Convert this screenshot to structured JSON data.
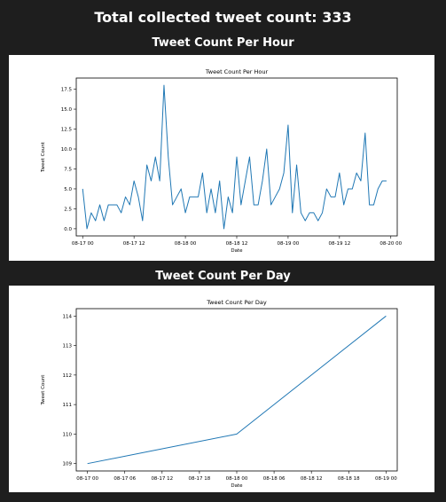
{
  "header": {
    "title": "Total collected tweet count: 333"
  },
  "sections": [
    {
      "heading": "Tweet Count Per Hour"
    },
    {
      "heading": "Tweet Count Per Day"
    }
  ],
  "colors": {
    "background": "#1e1e1e",
    "line": "#1f77b4",
    "panel": "#ffffff"
  },
  "chart_data": [
    {
      "type": "line",
      "title": "Tweet Count Per Hour",
      "xlabel": "Date",
      "ylabel": "Tweet Count",
      "ylim": [
        -0.9,
        18.9
      ],
      "xlim": [
        "2021-08-16T22:30",
        "2021-08-20T01:30"
      ],
      "x_ticks": [
        {
          "x": "2021-08-17T00:00",
          "label": "08-17 00"
        },
        {
          "x": "2021-08-17T12:00",
          "label": "08-17 12"
        },
        {
          "x": "2021-08-18T00:00",
          "label": "08-18 00"
        },
        {
          "x": "2021-08-18T12:00",
          "label": "08-18 12"
        },
        {
          "x": "2021-08-19T00:00",
          "label": "08-19 00"
        },
        {
          "x": "2021-08-19T12:00",
          "label": "08-19 12"
        },
        {
          "x": "2021-08-20T00:00",
          "label": "08-20 00"
        }
      ],
      "y_ticks": [
        {
          "y": 0.0,
          "label": "0.0"
        },
        {
          "y": 2.5,
          "label": "2.5"
        },
        {
          "y": 5.0,
          "label": "5.0"
        },
        {
          "y": 7.5,
          "label": "7.5"
        },
        {
          "y": 10.0,
          "label": "10.0"
        },
        {
          "y": 12.5,
          "label": "12.5"
        },
        {
          "y": 15.0,
          "label": "15.0"
        },
        {
          "y": 17.5,
          "label": "17.5"
        }
      ],
      "series": [
        {
          "points": [
            [
              "2021-08-17T00:00",
              5
            ],
            [
              "2021-08-17T01:00",
              0
            ],
            [
              "2021-08-17T02:00",
              2
            ],
            [
              "2021-08-17T03:00",
              1
            ],
            [
              "2021-08-17T04:00",
              3
            ],
            [
              "2021-08-17T05:00",
              1
            ],
            [
              "2021-08-17T06:00",
              3
            ],
            [
              "2021-08-17T07:00",
              3
            ],
            [
              "2021-08-17T08:00",
              3
            ],
            [
              "2021-08-17T09:00",
              2
            ],
            [
              "2021-08-17T10:00",
              4
            ],
            [
              "2021-08-17T11:00",
              3
            ],
            [
              "2021-08-17T12:00",
              6
            ],
            [
              "2021-08-17T13:00",
              4
            ],
            [
              "2021-08-17T14:00",
              1
            ],
            [
              "2021-08-17T15:00",
              8
            ],
            [
              "2021-08-17T16:00",
              6
            ],
            [
              "2021-08-17T17:00",
              9
            ],
            [
              "2021-08-17T18:00",
              6
            ],
            [
              "2021-08-17T19:00",
              18
            ],
            [
              "2021-08-17T20:00",
              9
            ],
            [
              "2021-08-17T21:00",
              3
            ],
            [
              "2021-08-17T22:00",
              4
            ],
            [
              "2021-08-17T23:00",
              5
            ],
            [
              "2021-08-18T00:00",
              2
            ],
            [
              "2021-08-18T01:00",
              4
            ],
            [
              "2021-08-18T02:00",
              4
            ],
            [
              "2021-08-18T03:00",
              4
            ],
            [
              "2021-08-18T04:00",
              7
            ],
            [
              "2021-08-18T05:00",
              2
            ],
            [
              "2021-08-18T06:00",
              5
            ],
            [
              "2021-08-18T07:00",
              2
            ],
            [
              "2021-08-18T08:00",
              6
            ],
            [
              "2021-08-18T09:00",
              0
            ],
            [
              "2021-08-18T10:00",
              4
            ],
            [
              "2021-08-18T11:00",
              2
            ],
            [
              "2021-08-18T12:00",
              9
            ],
            [
              "2021-08-18T13:00",
              3
            ],
            [
              "2021-08-18T14:00",
              6
            ],
            [
              "2021-08-18T15:00",
              9
            ],
            [
              "2021-08-18T16:00",
              3
            ],
            [
              "2021-08-18T17:00",
              3
            ],
            [
              "2021-08-18T18:00",
              6
            ],
            [
              "2021-08-18T19:00",
              10
            ],
            [
              "2021-08-18T20:00",
              3
            ],
            [
              "2021-08-18T21:00",
              4
            ],
            [
              "2021-08-18T22:00",
              5
            ],
            [
              "2021-08-18T23:00",
              7
            ],
            [
              "2021-08-19T00:00",
              13
            ],
            [
              "2021-08-19T01:00",
              2
            ],
            [
              "2021-08-19T02:00",
              8
            ],
            [
              "2021-08-19T03:00",
              2
            ],
            [
              "2021-08-19T04:00",
              1
            ],
            [
              "2021-08-19T05:00",
              2
            ],
            [
              "2021-08-19T06:00",
              2
            ],
            [
              "2021-08-19T07:00",
              1
            ],
            [
              "2021-08-19T08:00",
              2
            ],
            [
              "2021-08-19T09:00",
              5
            ],
            [
              "2021-08-19T10:00",
              4
            ],
            [
              "2021-08-19T11:00",
              4
            ],
            [
              "2021-08-19T12:00",
              7
            ],
            [
              "2021-08-19T13:00",
              3
            ],
            [
              "2021-08-19T14:00",
              5
            ],
            [
              "2021-08-19T15:00",
              5
            ],
            [
              "2021-08-19T16:00",
              7
            ],
            [
              "2021-08-19T17:00",
              6
            ],
            [
              "2021-08-19T18:00",
              12
            ],
            [
              "2021-08-19T19:00",
              3
            ],
            [
              "2021-08-19T20:00",
              3
            ],
            [
              "2021-08-19T21:00",
              5
            ],
            [
              "2021-08-19T22:00",
              6
            ],
            [
              "2021-08-19T23:00",
              6
            ]
          ]
        }
      ],
      "grid": false
    },
    {
      "type": "line",
      "title": "Tweet Count Per Day",
      "xlabel": "Date",
      "ylabel": "Tweet Count",
      "ylim": [
        108.75,
        114.25
      ],
      "xlim": [
        "2021-08-16T22:12",
        "2021-08-19T01:48"
      ],
      "x_ticks": [
        {
          "x": "2021-08-17T00:00",
          "label": "08-17 00"
        },
        {
          "x": "2021-08-17T06:00",
          "label": "08-17 06"
        },
        {
          "x": "2021-08-17T12:00",
          "label": "08-17 12"
        },
        {
          "x": "2021-08-17T18:00",
          "label": "08-17 18"
        },
        {
          "x": "2021-08-18T00:00",
          "label": "08-18 00"
        },
        {
          "x": "2021-08-18T06:00",
          "label": "08-18 06"
        },
        {
          "x": "2021-08-18T12:00",
          "label": "08-18 12"
        },
        {
          "x": "2021-08-18T18:00",
          "label": "08-18 18"
        },
        {
          "x": "2021-08-19T00:00",
          "label": "08-19 00"
        }
      ],
      "y_ticks": [
        {
          "y": 109,
          "label": "109"
        },
        {
          "y": 110,
          "label": "110"
        },
        {
          "y": 111,
          "label": "111"
        },
        {
          "y": 112,
          "label": "112"
        },
        {
          "y": 113,
          "label": "113"
        },
        {
          "y": 114,
          "label": "114"
        }
      ],
      "series": [
        {
          "points": [
            [
              "2021-08-17T00:00",
              109
            ],
            [
              "2021-08-18T00:00",
              110
            ],
            [
              "2021-08-19T00:00",
              114
            ]
          ]
        }
      ],
      "grid": false
    }
  ]
}
